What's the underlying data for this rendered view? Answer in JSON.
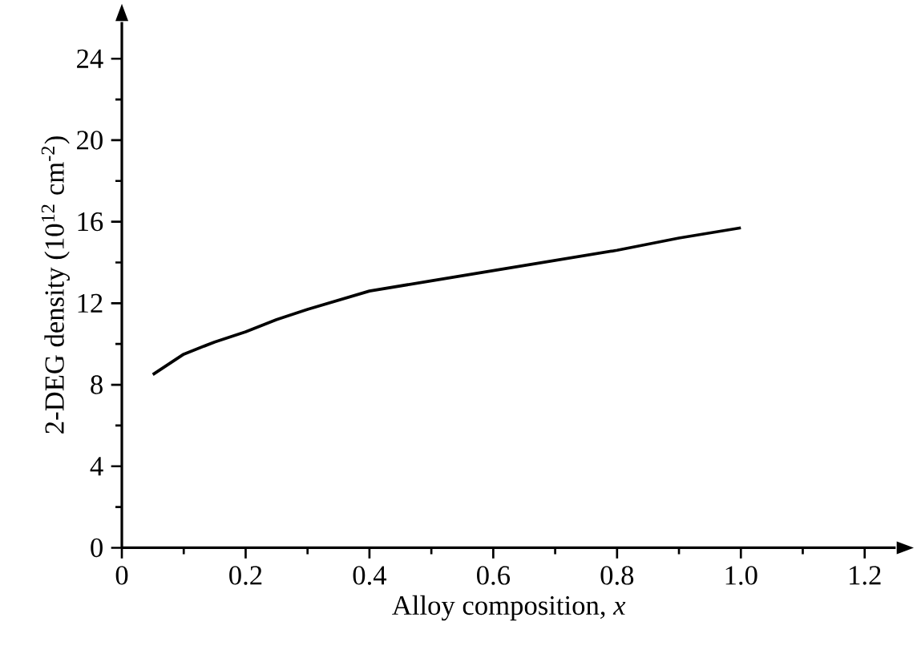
{
  "chart_data": {
    "type": "line",
    "xlabel": "Alloy composition, *x*",
    "ylabel": "2-DEG density (10$^{12}$ cm$^{-2}$)",
    "x": [
      0.05,
      0.1,
      0.15,
      0.2,
      0.25,
      0.3,
      0.4,
      0.5,
      0.6,
      0.7,
      0.8,
      0.9,
      1.0
    ],
    "series": [
      {
        "color": "#000000",
        "values": [
          8.5,
          9.5,
          10.1,
          10.6,
          11.2,
          11.7,
          12.6,
          13.1,
          13.6,
          14.1,
          14.6,
          15.2,
          15.7
        ]
      }
    ],
    "xlim": [
      0,
      1.25
    ],
    "ylim": [
      0,
      25.8
    ],
    "xticks": [
      0,
      0.2,
      0.4,
      0.6,
      0.8,
      {
        "value": 1.0,
        "label": "1.0"
      },
      1.2
    ],
    "yticks": [
      0,
      4,
      8,
      12,
      16,
      20,
      24
    ],
    "grid": false,
    "marker": "none",
    "line_style": "solid"
  }
}
